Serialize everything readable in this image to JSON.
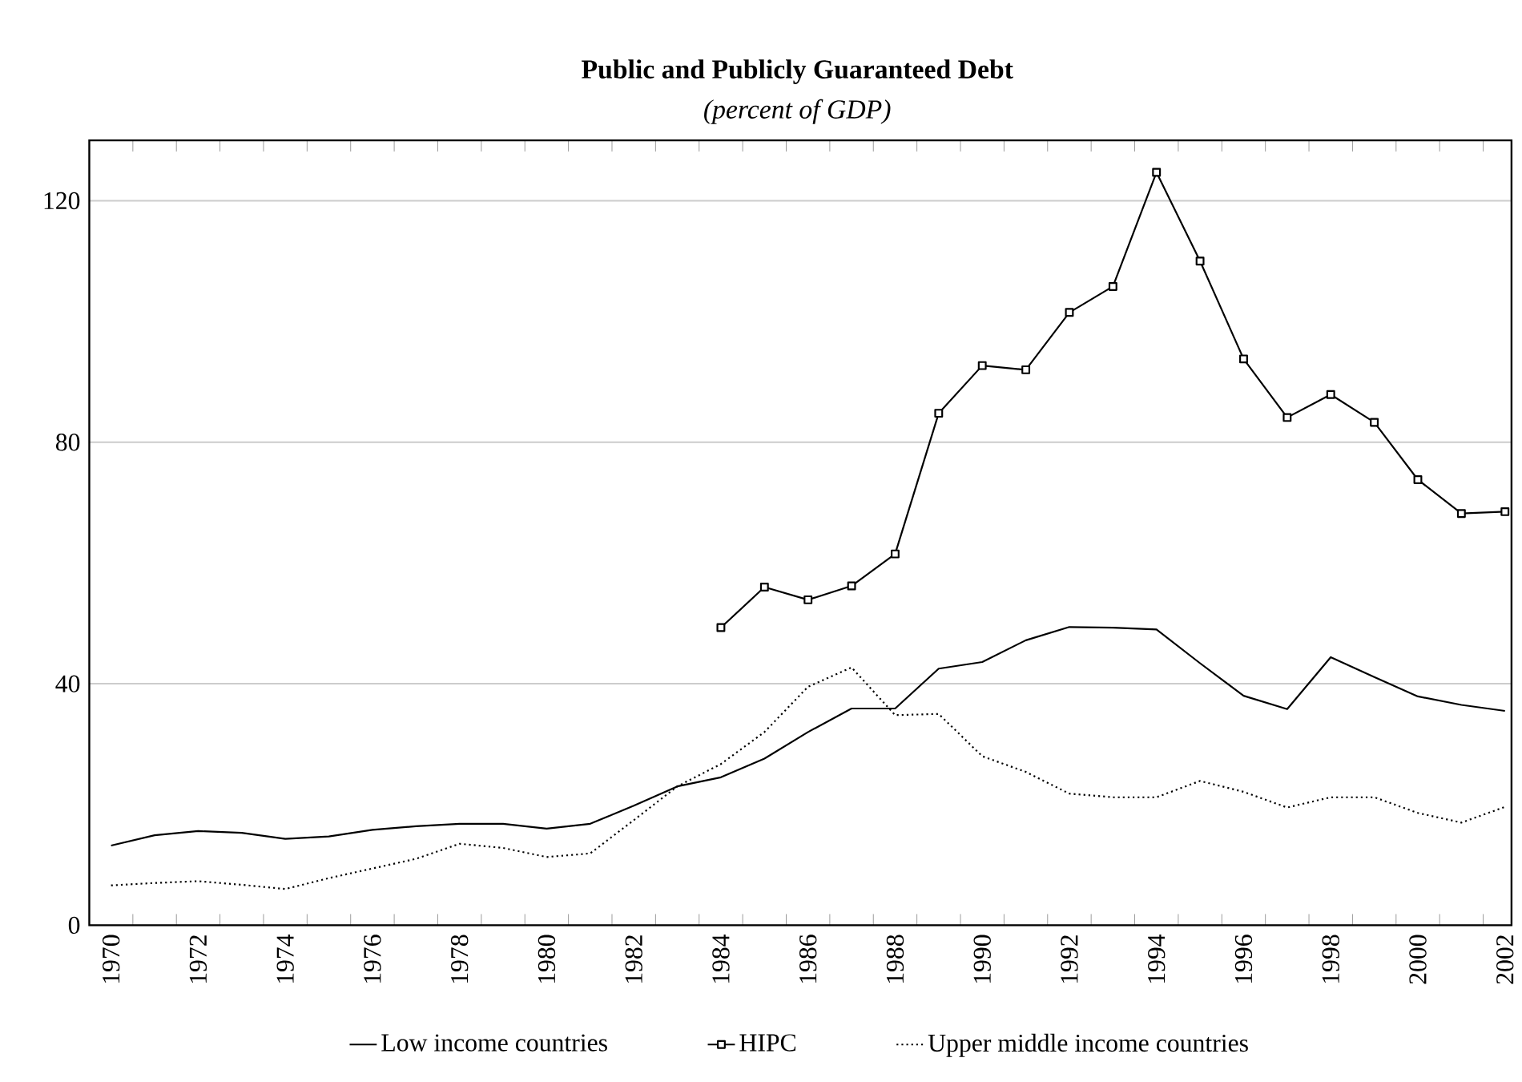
{
  "chart_data": {
    "type": "line",
    "title": "Public and Publicly Guaranteed Debt",
    "subtitle": "(percent of GDP)",
    "categories": [
      "1970",
      null,
      "1972",
      null,
      "1974",
      null,
      "1976",
      null,
      "1978",
      null,
      "1980",
      null,
      "1982",
      null,
      "1984",
      null,
      "1986",
      null,
      "1988",
      null,
      "1990",
      null,
      "1992",
      null,
      "1994",
      null,
      "1996",
      null,
      "1998",
      null,
      "2000",
      null,
      "2002"
    ],
    "series": [
      {
        "name": "Low income countries",
        "color": "#000000",
        "line_style": "solid",
        "values": [
          13.2,
          14.9,
          15.6,
          15.3,
          14.3,
          14.7,
          15.8,
          16.4,
          16.8,
          16.8,
          16.0,
          16.8,
          19.8,
          23.0,
          24.5,
          27.6,
          32.0,
          35.9,
          35.9,
          42.5,
          43.6,
          47.2,
          49.4,
          49.3,
          49.0,
          43.4,
          38.0,
          35.8,
          44.4,
          41.1,
          37.9,
          36.5,
          35.5
        ]
      },
      {
        "name": "HIPC",
        "color": "#000000",
        "line_style": "solid",
        "marker": "square",
        "values": [
          null,
          null,
          null,
          null,
          null,
          null,
          null,
          null,
          null,
          null,
          null,
          null,
          null,
          null,
          49.3,
          56.0,
          53.9,
          56.2,
          61.5,
          84.8,
          92.7,
          92.0,
          101.5,
          105.8,
          124.7,
          110.0,
          93.8,
          84.1,
          87.9,
          83.3,
          73.8,
          68.2,
          68.5
        ]
      },
      {
        "name": "Upper middle income countries",
        "color": "#000000",
        "line_style": "dotted",
        "values": [
          6.6,
          7.0,
          7.3,
          6.7,
          6.0,
          7.8,
          9.4,
          11.0,
          13.5,
          12.8,
          11.3,
          11.9,
          17.4,
          23.0,
          26.7,
          32.0,
          39.5,
          42.7,
          34.8,
          35.0,
          28.0,
          25.4,
          21.8,
          21.2,
          21.2,
          23.9,
          22.1,
          19.5,
          21.2,
          21.2,
          18.6,
          17.0,
          19.6
        ]
      }
    ],
    "ylim": [
      0,
      130
    ],
    "yticks": [
      0,
      40,
      80,
      120
    ],
    "grid": "y",
    "legend": "bottom"
  }
}
